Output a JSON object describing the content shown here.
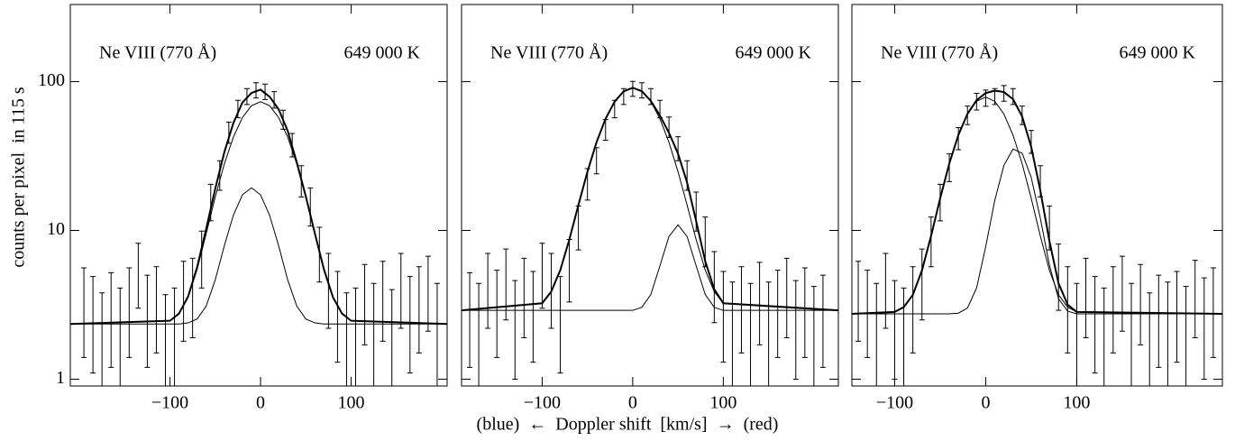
{
  "chart_data": [
    {
      "type": "errorbar-fit",
      "annotations": [
        "Ne VIII (770 Å)",
        "649 000 K"
      ],
      "ylabel": "counts per pixel  in 115 s",
      "xlim": [
        -210,
        206
      ],
      "xticks": [
        {
          "value": -100,
          "label": "−100"
        },
        0,
        100
      ],
      "ylim": [
        0.9,
        330
      ],
      "yscale": "log",
      "yticks": [
        1,
        10,
        100
      ],
      "series": [
        {
          "color": "#000000",
          "x": [
            -195,
            -185,
            -175,
            -165,
            -155,
            -145,
            -135,
            -125,
            -115,
            -105,
            -95,
            -85,
            -75,
            -65,
            -55,
            -45,
            -35,
            -25,
            -15,
            -5,
            5,
            15,
            25,
            35,
            45,
            55,
            65,
            75,
            85,
            95,
            105,
            115,
            125,
            135,
            145,
            155,
            165,
            175,
            185,
            195
          ],
          "values": [
            3.5,
            3.0,
            2.2,
            3.2,
            2.4,
            3.5,
            5.6,
            3.1,
            3.6,
            2.1,
            2.4,
            4.0,
            4.2,
            7.0,
            16,
            24,
            46,
            66,
            80,
            88,
            86,
            76,
            56,
            38,
            22,
            15,
            7.5,
            4.6,
            3.3,
            2.2,
            2.4,
            3.8,
            2.6,
            4.0,
            2.3,
            4.6,
            3.0,
            3.6,
            4.4,
            2.6
          ],
          "errors": [
            2.1,
            1.9,
            1.6,
            2.0,
            1.7,
            2.1,
            2.6,
            1.9,
            2.1,
            1.6,
            1.7,
            2.2,
            2.3,
            2.9,
            4.4,
            5.4,
            7.5,
            8.9,
            9.8,
            10.3,
            10.2,
            9.6,
            8.2,
            6.8,
            5.2,
            4.3,
            3.0,
            2.4,
            2.0,
            1.6,
            1.7,
            2.1,
            1.8,
            2.2,
            1.7,
            2.4,
            1.9,
            2.1,
            2.3,
            1.8
          ]
        },
        {
          "color": "#000000",
          "line_width": 2,
          "x": [
            -210,
            -100,
            -90,
            -80,
            -70,
            -60,
            -50,
            -40,
            -30,
            -20,
            -10,
            0,
            10,
            20,
            30,
            40,
            50,
            60,
            70,
            80,
            90,
            100,
            206
          ],
          "values": [
            2.35,
            2.47,
            2.76,
            3.59,
            5.66,
            10.25,
            19.05,
            33.47,
            52.65,
            72.35,
            83.95,
            88.35,
            79.25,
            65.2,
            46.65,
            28.7,
            16.94,
            9.54,
            5.47,
            3.55,
            2.76,
            2.47,
            2.35
          ]
        },
        {
          "color": "#000000",
          "line_width": 1,
          "x": [
            -210,
            -100,
            -90,
            -80,
            -70,
            -60,
            -50,
            -40,
            -30,
            -20,
            -10,
            0,
            10,
            20,
            30,
            40,
            50,
            60,
            70,
            80,
            90,
            100,
            206
          ],
          "values": [
            2.35,
            2.47,
            2.76,
            3.55,
            5.47,
            9.5,
            16.75,
            27.95,
            42.35,
            57.35,
            68.95,
            73.35,
            68.95,
            57.35,
            42.35,
            27.95,
            16.75,
            9.5,
            5.47,
            3.55,
            2.76,
            2.47,
            2.35
          ]
        },
        {
          "color": "#000000",
          "line_width": 1,
          "x": [
            -210,
            -100,
            -90,
            -80,
            -70,
            -60,
            -50,
            -40,
            -30,
            -20,
            -10,
            0,
            10,
            20,
            30,
            40,
            50,
            60,
            70,
            80,
            90,
            100,
            206
          ],
          "values": [
            2.35,
            2.35,
            2.35,
            2.39,
            2.54,
            3.1,
            4.65,
            7.87,
            12.65,
            17.35,
            19.35,
            17.35,
            12.65,
            7.87,
            4.65,
            3.1,
            2.54,
            2.39,
            2.35,
            2.35,
            2.35,
            2.35,
            2.35
          ]
        }
      ]
    },
    {
      "type": "errorbar-fit",
      "annotations": [
        "Ne VIII (770 Å)",
        "649 000 K"
      ],
      "xlabel": "(blue)  ←  Doppler shift  [km/s]  →  (red)",
      "xlim": [
        -189,
        227
      ],
      "xticks": [
        {
          "value": -100,
          "label": "−100"
        },
        0,
        100
      ],
      "ylim": [
        0.9,
        330
      ],
      "yscale": "log",
      "series": [
        {
          "color": "#000000",
          "x": [
            -180,
            -170,
            -160,
            -150,
            -140,
            -130,
            -120,
            -110,
            -100,
            -90,
            -80,
            -70,
            -60,
            -50,
            -40,
            -30,
            -20,
            -10,
            0,
            10,
            20,
            30,
            40,
            50,
            60,
            70,
            80,
            90,
            100,
            110,
            120,
            130,
            140,
            150,
            160,
            170,
            180,
            190,
            200,
            210
          ],
          "values": [
            3.2,
            2.6,
            4.6,
            3.4,
            5.0,
            2.8,
            4.2,
            3.3,
            5.6,
            4.6,
            3.0,
            6.0,
            11,
            21,
            30,
            48,
            66,
            80,
            90,
            88,
            80,
            66,
            50,
            36,
            24,
            14,
            9.0,
            4.8,
            3.3,
            2.7,
            3.6,
            2.6,
            3.9,
            2.7,
            3.4,
            4.2,
            2.8,
            3.5,
            2.5,
            3.1
          ],
          "errors": [
            2.0,
            1.8,
            2.4,
            2.0,
            2.5,
            1.8,
            2.3,
            2.0,
            2.6,
            2.4,
            1.9,
            2.7,
            3.6,
            5.0,
            6.0,
            7.6,
            8.9,
            9.8,
            10.4,
            10.3,
            9.8,
            8.9,
            7.8,
            6.6,
            5.4,
            4.1,
            3.3,
            2.4,
            2.0,
            1.8,
            2.1,
            1.8,
            2.2,
            1.8,
            2.0,
            2.3,
            1.8,
            2.1,
            1.7,
            1.9
          ]
        },
        {
          "color": "#000000",
          "line_width": 2,
          "x": [
            -189,
            -100,
            -90,
            -80,
            -70,
            -60,
            -50,
            -40,
            -30,
            -20,
            -10,
            0,
            10,
            20,
            30,
            40,
            50,
            60,
            70,
            80,
            90,
            100,
            227
          ],
          "values": [
            2.9,
            3.24,
            3.88,
            5.41,
            8.68,
            14.8,
            24.8,
            39.1,
            56.3,
            73.4,
            86.1,
            90.9,
            86.24,
            74.21,
            59.18,
            45.3,
            32.8,
            21.0,
            11.56,
            6.22,
            4.02,
            3.24,
            2.9
          ]
        },
        {
          "color": "#000000",
          "line_width": 1,
          "x": [
            -189,
            -100,
            -90,
            -80,
            -70,
            -60,
            -50,
            -40,
            -30,
            -20,
            -10,
            0,
            10,
            20,
            30,
            40,
            50,
            60,
            70,
            80,
            90,
            100,
            227
          ],
          "values": [
            2.9,
            3.24,
            3.88,
            5.41,
            8.68,
            14.8,
            24.8,
            39.1,
            56.3,
            73.4,
            86.1,
            90.9,
            86.1,
            73.4,
            56.3,
            39.1,
            24.8,
            14.8,
            8.68,
            5.41,
            3.88,
            3.24,
            2.9
          ]
        },
        {
          "color": "#000000",
          "line_width": 1,
          "x": [
            -189,
            -100,
            -90,
            -80,
            -70,
            -60,
            -50,
            -40,
            -30,
            -20,
            -10,
            0,
            10,
            20,
            30,
            40,
            50,
            60,
            70,
            80,
            90,
            100,
            227
          ],
          "values": [
            2.9,
            2.9,
            2.9,
            2.9,
            2.9,
            2.9,
            2.9,
            2.9,
            2.9,
            2.9,
            2.9,
            2.9,
            3.04,
            3.71,
            5.78,
            9.1,
            10.9,
            9.1,
            5.78,
            3.71,
            3.04,
            2.9,
            2.9
          ]
        }
      ]
    },
    {
      "type": "errorbar-fit",
      "annotations": [
        "Ne VIII (770 Å)",
        "649 000 K"
      ],
      "xlim": [
        -147,
        260
      ],
      "xticks": [
        {
          "value": -100,
          "label": "−100"
        },
        0,
        100
      ],
      "ylim": [
        0.9,
        330
      ],
      "yscale": "log",
      "series": [
        {
          "color": "#000000",
          "x": [
            -140,
            -130,
            -120,
            -110,
            -100,
            -90,
            -80,
            -70,
            -60,
            -50,
            -40,
            -30,
            -20,
            -10,
            0,
            10,
            20,
            30,
            40,
            50,
            60,
            70,
            80,
            90,
            100,
            110,
            120,
            130,
            140,
            150,
            160,
            170,
            180,
            190,
            200,
            210,
            220,
            230,
            240,
            250
          ],
          "values": [
            4.0,
            3.4,
            2.6,
            4.6,
            2.8,
            2.4,
            3.6,
            5.0,
            9,
            16,
            27,
            42,
            60,
            74,
            78,
            80,
            84,
            80,
            60,
            40,
            22,
            11,
            5.5,
            3.6,
            2.6,
            4.2,
            3.0,
            2.4,
            3.6,
            4.4,
            2.6,
            3.8,
            2.2,
            3.1,
            2.7,
            3.3,
            2.5,
            4.1,
            2.9,
            3.5
          ],
          "errors": [
            2.2,
            2.0,
            1.8,
            2.4,
            1.8,
            1.7,
            2.1,
            2.5,
            3.3,
            4.4,
            5.7,
            7.1,
            8.5,
            9.5,
            9.7,
            9.8,
            10.1,
            9.8,
            8.5,
            7.0,
            5.2,
            3.6,
            2.6,
            2.1,
            1.8,
            2.3,
            1.9,
            1.7,
            2.1,
            2.3,
            1.8,
            2.1,
            1.6,
            1.9,
            1.8,
            2.0,
            1.7,
            2.2,
            1.9,
            2.1
          ]
        },
        {
          "color": "#000000",
          "line_width": 2,
          "x": [
            -147,
            -100,
            -90,
            -80,
            -70,
            -60,
            -50,
            -40,
            -30,
            -20,
            -10,
            0,
            10,
            20,
            30,
            40,
            50,
            60,
            70,
            80,
            90,
            100,
            260
          ],
          "values": [
            2.75,
            2.83,
            3.05,
            3.69,
            5.39,
            9.18,
            16.45,
            28.15,
            43.78,
            60.81,
            75.1,
            83.77,
            86.95,
            85.15,
            76.25,
            58.45,
            36.45,
            18.53,
            8.48,
            4.41,
            3.17,
            2.83,
            2.75
          ]
        },
        {
          "color": "#000000",
          "line_width": 1,
          "x": [
            -147,
            -100,
            -90,
            -80,
            -70,
            -60,
            -50,
            -40,
            -30,
            -20,
            -10,
            0,
            10,
            20,
            30,
            40,
            50,
            60,
            70,
            80,
            90,
            100,
            260
          ],
          "values": [
            2.75,
            2.83,
            3.05,
            3.69,
            5.39,
            9.18,
            16.45,
            28.15,
            43.75,
            60.55,
            73.75,
            78.75,
            73.75,
            60.55,
            43.75,
            28.15,
            16.45,
            9.18,
            5.39,
            3.69,
            3.05,
            2.83,
            2.75
          ]
        },
        {
          "color": "#000000",
          "line_width": 1,
          "x": [
            -147,
            -100,
            -90,
            -80,
            -70,
            -60,
            -50,
            -40,
            -30,
            -20,
            -10,
            0,
            10,
            20,
            30,
            40,
            50,
            60,
            70,
            80,
            90,
            100,
            260
          ],
          "values": [
            2.75,
            2.75,
            2.75,
            2.75,
            2.75,
            2.75,
            2.75,
            2.75,
            2.78,
            3.01,
            4.1,
            7.77,
            15.95,
            27.35,
            35.25,
            33.05,
            22.75,
            12.1,
            5.84,
            3.47,
            2.87,
            2.75,
            2.75
          ]
        }
      ]
    }
  ]
}
